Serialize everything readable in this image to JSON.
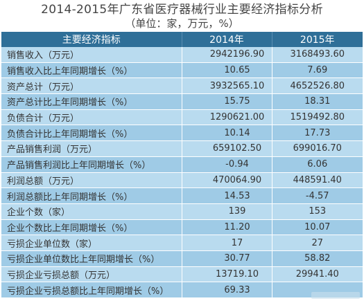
{
  "title": "2014-2015年广东省医疗器械行业主要经济指标分析",
  "subtitle": "（单位：家，万元，%）",
  "table": {
    "headers": [
      "主要经济指标",
      "2014年",
      "2015年"
    ],
    "rows": [
      {
        "label": "销售收入（万元）",
        "v2014": "2942196.90",
        "v2015": "3168493.60"
      },
      {
        "label": "销售收入比上年同期增长（%）",
        "v2014": "10.65",
        "v2015": "7.69"
      },
      {
        "label": "资产总计（万元）",
        "v2014": "3932565.10",
        "v2015": "4652526.80"
      },
      {
        "label": "资产总计比上年同期增长（%）",
        "v2014": "15.75",
        "v2015": "18.31"
      },
      {
        "label": "负债合计（万元）",
        "v2014": "1290621.00",
        "v2015": "1519492.80"
      },
      {
        "label": "负债合计比上年同期增长（%）",
        "v2014": "10.14",
        "v2015": "17.73"
      },
      {
        "label": "产品销售利润（万元）",
        "v2014": "659102.50",
        "v2015": "699016.70"
      },
      {
        "label": "产品销售利润比上年同期增长（%）",
        "v2014": "-0.94",
        "v2015": "6.06"
      },
      {
        "label": "利润总额（万元）",
        "v2014": "470064.90",
        "v2015": "448591.40"
      },
      {
        "label": "利润总额比上年同期增长（%）",
        "v2014": "14.53",
        "v2015": "-4.57"
      },
      {
        "label": "企业个数（家）",
        "v2014": "139",
        "v2015": "153"
      },
      {
        "label": "企业个数比上年同期增长（%）",
        "v2014": "11.20",
        "v2015": "10.07"
      },
      {
        "label": "亏损企业单位数（家）",
        "v2014": "17",
        "v2015": "27"
      },
      {
        "label": "亏损企业单位数比上年同期增长（%）",
        "v2014": "30.77",
        "v2015": "58.82"
      },
      {
        "label": "亏损企业亏损总额（万元）",
        "v2014": "13719.10",
        "v2015": "29941.40"
      },
      {
        "label": "亏损企业亏损总额比上年同期增长（%）",
        "v2014": "69.33",
        "v2015": ""
      }
    ]
  },
  "colors": {
    "header_bg": "#2f6f98",
    "row_light": "#b9dbef",
    "row_dark": "#9fcbe6"
  }
}
